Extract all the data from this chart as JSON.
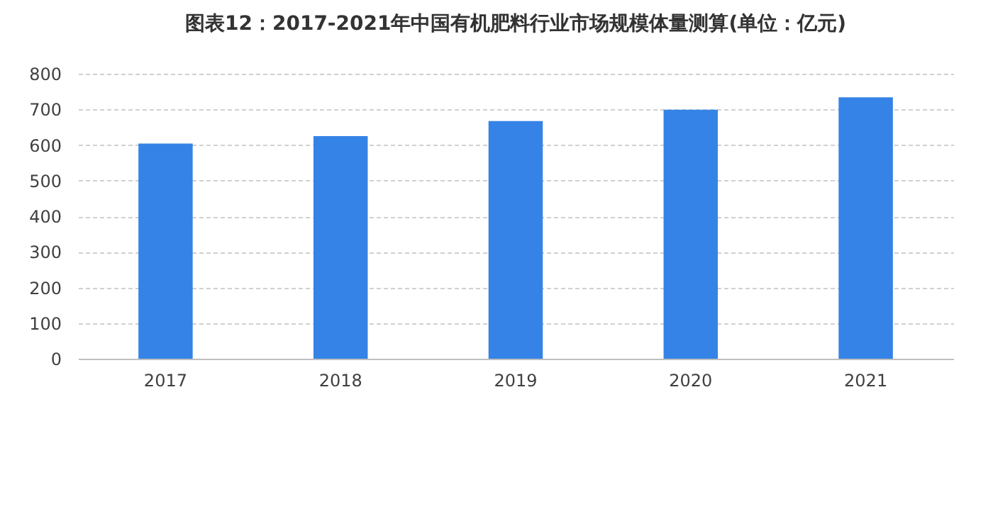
{
  "chart_data": {
    "type": "bar",
    "title": "图表12：2017-2021年中国有机肥料行业市场规模体量测算(单位：亿元)",
    "categories": [
      "2017",
      "2018",
      "2019",
      "2020",
      "2021"
    ],
    "values": [
      604,
      625,
      667,
      699,
      734
    ],
    "color": "#3583e6",
    "ylim": [
      0,
      800
    ],
    "yticks": [
      0,
      100,
      200,
      300,
      400,
      500,
      600,
      700,
      800
    ],
    "grid": "y"
  }
}
